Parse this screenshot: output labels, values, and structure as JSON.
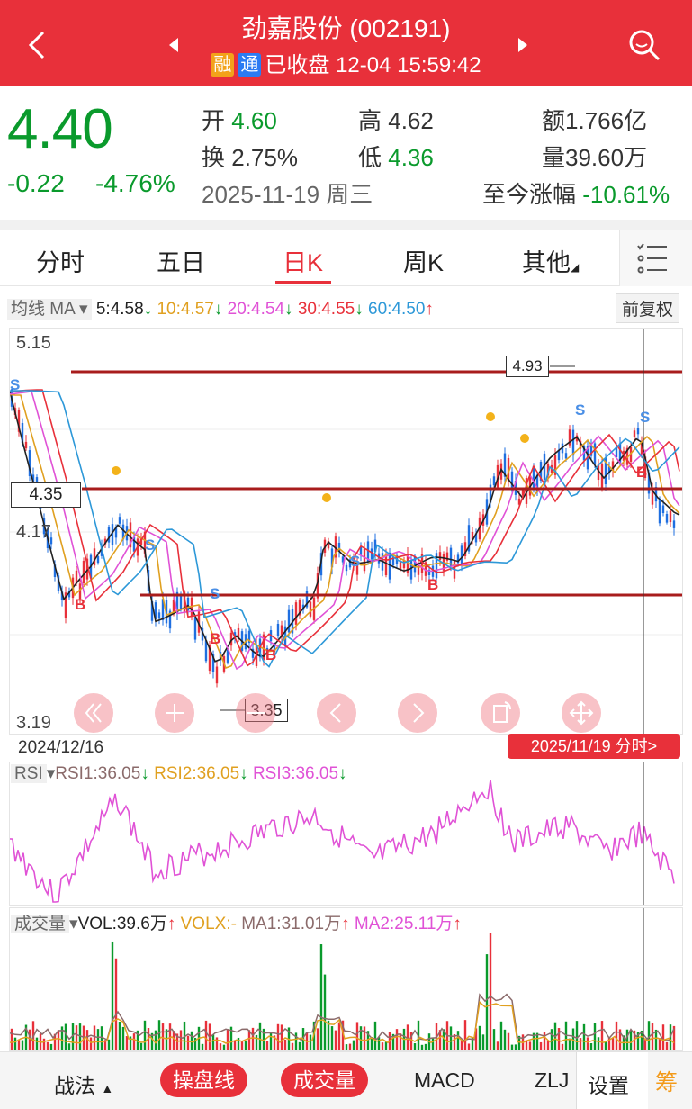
{
  "header": {
    "title": "劲嘉股份 (002191)",
    "badge_rong": "融",
    "badge_tong": "通",
    "status": "已收盘 12-04 15:59:42",
    "back_icon": "chevron-left-icon",
    "search_icon": "search-icon"
  },
  "quote": {
    "price": "4.40",
    "change": "-0.22",
    "change_pct": "-4.76%",
    "open_label": "开",
    "open": "4.60",
    "high_label": "高",
    "high": "4.62",
    "amount_label": "额",
    "amount": "1.766亿",
    "turnover_label": "换",
    "turnover": "2.75%",
    "low_label": "低",
    "low": "4.36",
    "volume_label": "量",
    "volume": "39.60万",
    "date": "2025-11-19 周三",
    "since_label": "至今涨幅",
    "since": "-10.61%"
  },
  "tabs": [
    {
      "label": "分时"
    },
    {
      "label": "五日"
    },
    {
      "label": "日K"
    },
    {
      "label": "周K"
    },
    {
      "label": "其他"
    }
  ],
  "ma": {
    "label": "均线 MA",
    "ma5": "5:4.58",
    "ma10": "10:4.57",
    "ma20": "20:4.54",
    "ma30": "30:4.55",
    "ma60": "60:4.50",
    "adjust": "前复权"
  },
  "chart": {
    "y_top": "5.15",
    "y_mid": "4.17",
    "y_bottom": "3.19",
    "hline_label": "4.35",
    "max_label": "4.93",
    "min_label": "3.35",
    "start_date": "2024/12/16",
    "end_date_button": "2025/11/19 分时>",
    "colors": {
      "up": "#e8303a",
      "down": "#1f6fe0",
      "ma5": "#222222",
      "ma10": "#e0a020",
      "ma20": "#e052d6",
      "ma30": "#e8303a",
      "ma60": "#2d98d8"
    }
  },
  "rsi": {
    "label": "RSI",
    "rsi1": "RSI1:36.05",
    "rsi2": "RSI2:36.05",
    "rsi3": "RSI3:36.05"
  },
  "volume": {
    "label": "成交量",
    "vol": "VOL:39.6万",
    "volx": "VOLX:-",
    "ma1": "MA1:31.01万",
    "ma2": "MA2:25.11万"
  },
  "bottom": {
    "zhanfa": "战法",
    "caopan": "操盘线",
    "chengjiao": "成交量",
    "macd": "MACD",
    "zlj": "ZLJ",
    "settings": "设置",
    "chou": "筹"
  }
}
